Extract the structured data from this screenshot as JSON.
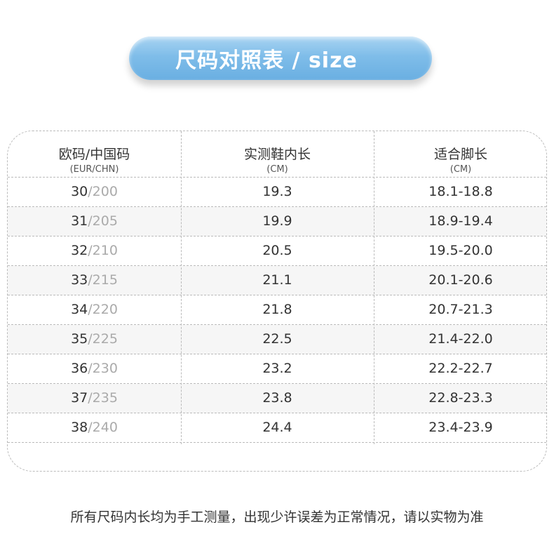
{
  "title": "尺码对照表 / size",
  "headers": [
    {
      "label": "欧码/中国码",
      "sub": "(EUR/CHN)"
    },
    {
      "label": "实测鞋内长",
      "sub": "(CM)"
    },
    {
      "label": "适合脚长",
      "sub": "(CM)"
    }
  ],
  "rows": [
    {
      "eu": "30",
      "cn": "200",
      "inner": "19.3",
      "foot": "18.1-18.8"
    },
    {
      "eu": "31",
      "cn": "205",
      "inner": "19.9",
      "foot": "18.9-19.4"
    },
    {
      "eu": "32",
      "cn": "210",
      "inner": "20.5",
      "foot": "19.5-20.0"
    },
    {
      "eu": "33",
      "cn": "215",
      "inner": "21.1",
      "foot": "20.1-20.6"
    },
    {
      "eu": "34",
      "cn": "220",
      "inner": "21.8",
      "foot": "20.7-21.3"
    },
    {
      "eu": "35",
      "cn": "225",
      "inner": "22.5",
      "foot": "21.4-22.0"
    },
    {
      "eu": "36",
      "cn": "230",
      "inner": "23.2",
      "foot": "22.2-22.7"
    },
    {
      "eu": "37",
      "cn": "235",
      "inner": "23.8",
      "foot": "22.8-23.3"
    },
    {
      "eu": "38",
      "cn": "240",
      "inner": "24.4",
      "foot": "23.4-23.9"
    }
  ],
  "separator": "/",
  "note": "所有尺码内长均为手工测量，出现少许误差为正常情况，请以实物为准",
  "colors": {
    "pill": "#7fbde9",
    "cn_text": "#aaaaaa",
    "row_alt": "#f6f6f6"
  }
}
